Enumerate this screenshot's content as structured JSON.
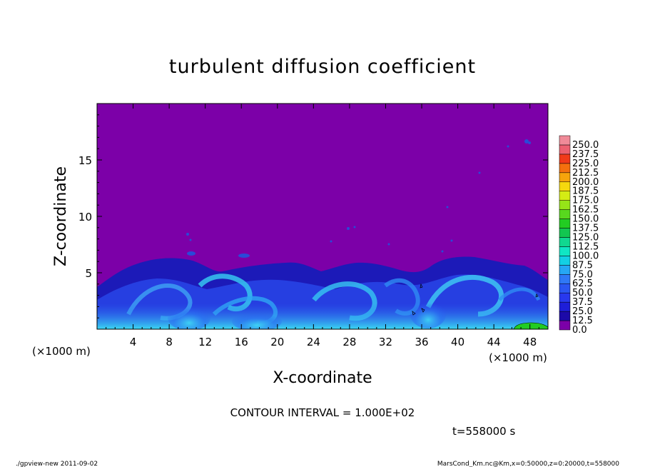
{
  "chart_data": {
    "type": "heatmap",
    "title": "turbulent diffusion coefficient",
    "xlabel": "X-coordinate",
    "ylabel": "Z-coordinate",
    "x_unit": "(×1000 m)",
    "x_ticks": [
      4,
      8,
      12,
      16,
      20,
      24,
      28,
      32,
      36,
      40,
      44,
      48
    ],
    "y_ticks": [
      5,
      10,
      15
    ],
    "xlim": [
      0,
      50
    ],
    "ylim": [
      0,
      20
    ],
    "contour_interval": "CONTOUR INTERVAL = 1.000E+02",
    "time_label": "t=558000 s",
    "colorbar": {
      "levels": [
        "0.0",
        "12.5",
        "25.0",
        "37.5",
        "50.0",
        "62.5",
        "75.0",
        "87.5",
        "100.0",
        "112.5",
        "125.0",
        "137.5",
        "150.0",
        "162.5",
        "175.0",
        "187.5",
        "200.0",
        "212.5",
        "225.0",
        "237.5",
        "250.0"
      ],
      "colors": [
        "#7c00a8",
        "#1c0aa8",
        "#1e1ed8",
        "#2838ee",
        "#2a56f2",
        "#2f78f6",
        "#26a6f4",
        "#13cfe4",
        "#10e6c4",
        "#10d890",
        "#12c650",
        "#22cc22",
        "#58d81e",
        "#96e418",
        "#d4ec14",
        "#f6d80e",
        "#f6a40c",
        "#f4700e",
        "#f03a1a",
        "#ec6070",
        "#f08a98"
      ]
    },
    "regions": [
      {
        "level": "0.0",
        "extent": "upper domain above ~6 (×1000 m) of Z"
      },
      {
        "level": "25.0–75.0",
        "extent": "turbulent boundary layer, Z below ~6.5 (×1000 m)"
      }
    ]
  },
  "footer": {
    "program": "./gpview-new   2011-09-02",
    "source": "MarsCond_Km.nc@Km,x=0:50000,z=0:20000,t=558000"
  }
}
